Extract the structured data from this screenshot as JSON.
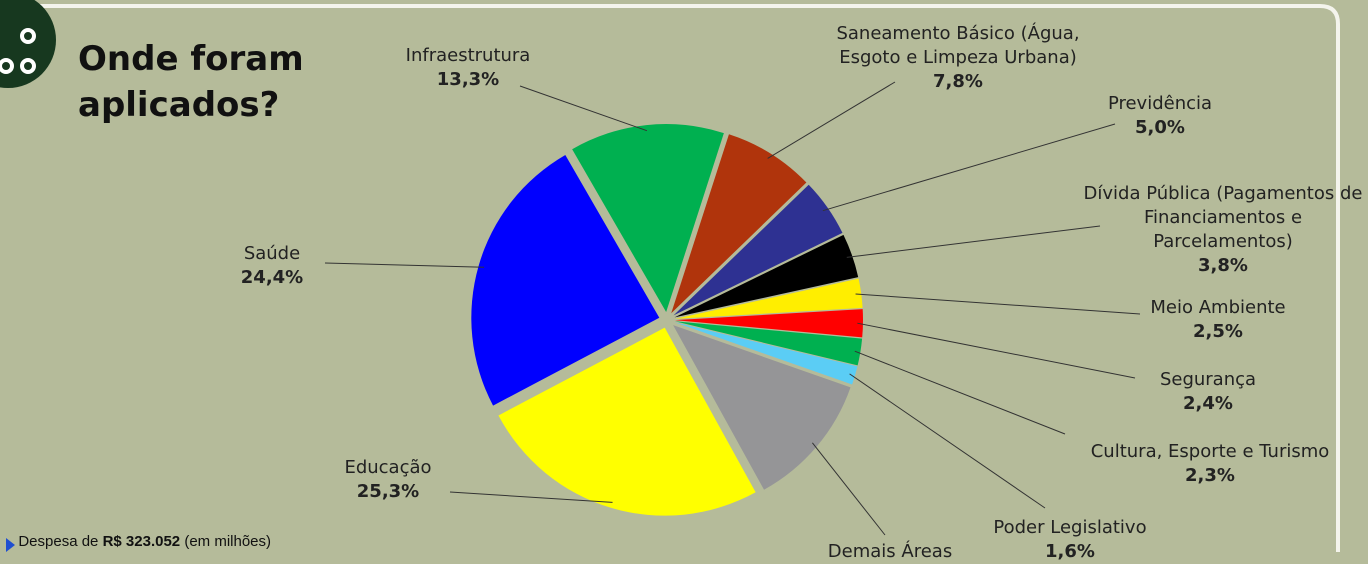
{
  "chart_data": {
    "type": "pie",
    "title": "Onde foram aplicados?",
    "categories": [
      "Infraestrutura",
      "Saneamento Básico (Água, Esgoto e Limpeza Urbana)",
      "Previdência",
      "Dívida Pública  (Pagamentos de Financiamentos e Parcelamentos)",
      "Meio Ambiente",
      "Segurança",
      "Cultura, Esporte e Turismo",
      "Poder Legislativo",
      "Demais Áreas",
      "Educação",
      "Saúde"
    ],
    "values": [
      13.3,
      7.8,
      5.0,
      3.8,
      2.5,
      2.4,
      2.3,
      1.6,
      11.6,
      25.3,
      24.4
    ],
    "value_labels": [
      "13,3%",
      "7,8%",
      "5,0%",
      "3,8%",
      "2,5%",
      "2,4%",
      "2,3%",
      "1,6%",
      null,
      "25,3%",
      "24,4%"
    ],
    "colors": [
      "#00b050",
      "#b0340c",
      "#2e3192",
      "#000000",
      "#ffee00",
      "#ff0000",
      "#00b050",
      "#5bcdf5",
      "#959597",
      "#ffff00",
      "#0000ff"
    ]
  },
  "footer": {
    "prefix": "Despesa de",
    "amount": "R$ 323.052",
    "suffix": "(em milhões)"
  }
}
